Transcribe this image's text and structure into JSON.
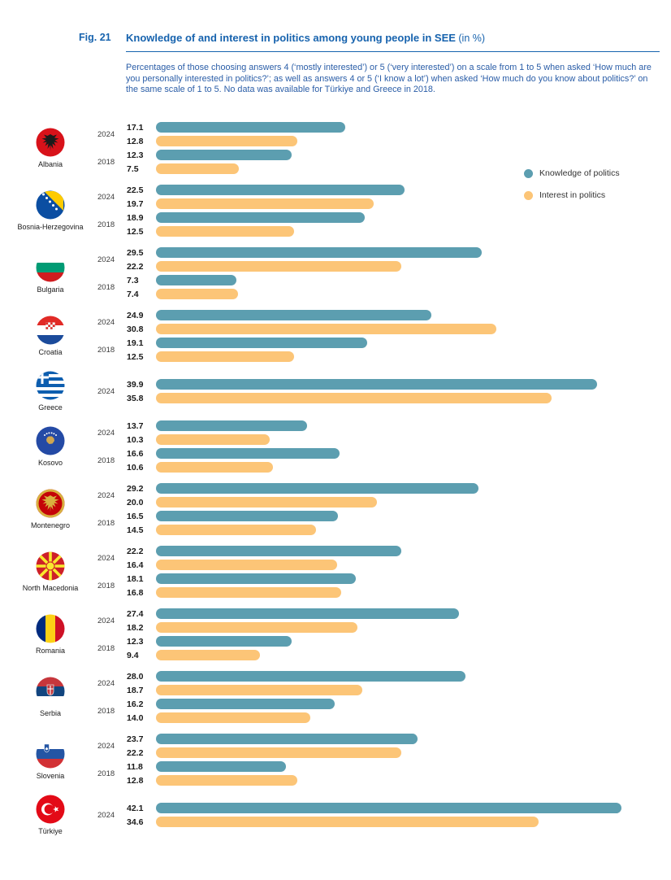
{
  "figure": {
    "label": "Fig. 21",
    "title": "Knowledge of and interest in politics among young people in SEE",
    "title_suffix": " (in %)",
    "description": "Percentages of those choosing answers 4 (‘mostly interested’) or 5 (‘very interested’) on a scale from 1 to 5 when asked ‘How much are you personally interested in politics?’; as well as answers 4 or 5 (‘I know a lot’) when asked ‘How much do you know about politics?’ on the same scale of 1 to 5. No data was available for Türkiye and Greece in 2018.",
    "accent_color": "#1763AE",
    "description_color": "#2A5DA7"
  },
  "legend": [
    {
      "label": "Knowledge of politics",
      "color": "#5C9EB0"
    },
    {
      "label": "Interest in politics",
      "color": "#FCC577"
    }
  ],
  "chart_data": {
    "type": "bar",
    "orientation": "horizontal",
    "unit": "%",
    "xlim": [
      0,
      45
    ],
    "grid": false,
    "legend_position": "upper-right",
    "series_names": [
      "Knowledge of politics",
      "Interest in politics"
    ],
    "groups": [
      {
        "country": "Albania",
        "flag": "albania",
        "rows": [
          {
            "year": "2024",
            "values": [
              17.1,
              12.8
            ]
          },
          {
            "year": "2018",
            "values": [
              12.3,
              7.5
            ]
          }
        ]
      },
      {
        "country": "Bosnia-Herzegovina",
        "flag": "bosnia",
        "rows": [
          {
            "year": "2024",
            "values": [
              22.5,
              19.7
            ]
          },
          {
            "year": "2018",
            "values": [
              18.9,
              12.5
            ]
          }
        ]
      },
      {
        "country": "Bulgaria",
        "flag": "bulgaria",
        "rows": [
          {
            "year": "2024",
            "values": [
              29.5,
              22.2
            ]
          },
          {
            "year": "2018",
            "values": [
              7.3,
              7.4
            ]
          }
        ]
      },
      {
        "country": "Croatia",
        "flag": "croatia",
        "rows": [
          {
            "year": "2024",
            "values": [
              24.9,
              30.8
            ]
          },
          {
            "year": "2018",
            "values": [
              19.1,
              12.5
            ]
          }
        ]
      },
      {
        "country": "Greece",
        "flag": "greece",
        "rows": [
          {
            "year": "2024",
            "values": [
              39.9,
              35.8
            ]
          }
        ]
      },
      {
        "country": "Kosovo",
        "flag": "kosovo",
        "rows": [
          {
            "year": "2024",
            "values": [
              13.7,
              10.3
            ]
          },
          {
            "year": "2018",
            "values": [
              16.6,
              10.6
            ]
          }
        ]
      },
      {
        "country": "Montenegro",
        "flag": "montenegro",
        "rows": [
          {
            "year": "2024",
            "values": [
              29.2,
              20.0
            ]
          },
          {
            "year": "2018",
            "values": [
              16.5,
              14.5
            ]
          }
        ]
      },
      {
        "country": "North Macedonia",
        "flag": "north-macedonia",
        "rows": [
          {
            "year": "2024",
            "values": [
              22.2,
              16.4
            ]
          },
          {
            "year": "2018",
            "values": [
              18.1,
              16.8
            ]
          }
        ]
      },
      {
        "country": "Romania",
        "flag": "romania",
        "rows": [
          {
            "year": "2024",
            "values": [
              27.4,
              18.2
            ]
          },
          {
            "year": "2018",
            "values": [
              12.3,
              9.4
            ]
          }
        ]
      },
      {
        "country": "Serbia",
        "flag": "serbia",
        "rows": [
          {
            "year": "2024",
            "values": [
              28.0,
              18.7
            ]
          },
          {
            "year": "2018",
            "values": [
              16.2,
              14.0
            ]
          }
        ]
      },
      {
        "country": "Slovenia",
        "flag": "slovenia",
        "rows": [
          {
            "year": "2024",
            "values": [
              23.7,
              22.2
            ]
          },
          {
            "year": "2018",
            "values": [
              11.8,
              12.8
            ]
          }
        ]
      },
      {
        "country": "Türkiye",
        "flag": "turkiye",
        "rows": [
          {
            "year": "2024",
            "values": [
              42.1,
              34.6
            ]
          }
        ]
      }
    ]
  }
}
